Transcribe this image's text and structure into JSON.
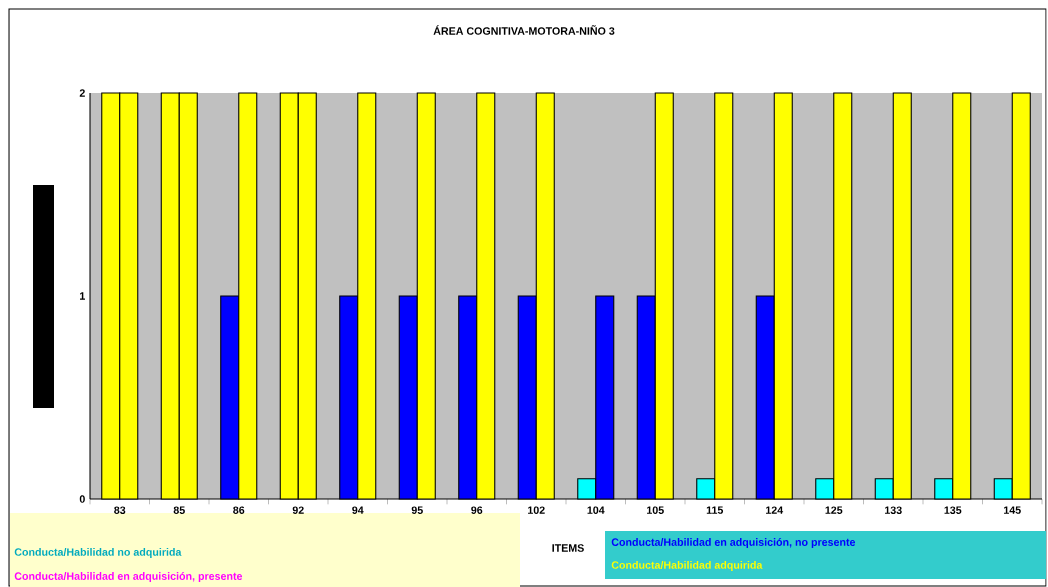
{
  "chart_data": {
    "type": "bar",
    "title": "ÁREA COGNITIVA-MOTORA-NIÑO 3",
    "xlabel": "ITEMS",
    "categories": [
      "83",
      "85",
      "86",
      "92",
      "94",
      "95",
      "96",
      "102",
      "104",
      "105",
      "115",
      "124",
      "125",
      "133",
      "135",
      "145"
    ],
    "series": [
      {
        "colors": [
          "#ffff00",
          "#ffff00",
          "#0000ff",
          "#ffff00",
          "#0000ff",
          "#0000ff",
          "#0000ff",
          "#0000ff",
          "#00ffff",
          "#0000ff",
          "#00ffff",
          "#0000ff",
          "#00ffff",
          "#00ffff",
          "#00ffff",
          "#00ffff"
        ],
        "values": [
          2,
          2,
          1,
          2,
          1,
          1,
          1,
          1,
          0.1,
          1,
          0.1,
          1,
          0.1,
          0.1,
          0.1,
          0.1
        ]
      },
      {
        "colors": [
          "#ffff00",
          "#ffff00",
          "#ffff00",
          "#ffff00",
          "#ffff00",
          "#ffff00",
          "#ffff00",
          "#ffff00",
          "#0000ff",
          "#ffff00",
          "#ffff00",
          "#ffff00",
          "#ffff00",
          "#ffff00",
          "#ffff00",
          "#ffff00"
        ],
        "values": [
          2,
          2,
          2,
          2,
          2,
          2,
          2,
          2,
          1,
          2,
          2,
          2,
          2,
          2,
          2,
          2
        ]
      }
    ],
    "ylim": [
      0,
      2
    ],
    "yticks": [
      0,
      1,
      2
    ],
    "grid": false,
    "annotations": [
      "Conducta/Habilidad no adquirida",
      "Conducta/Habilidad en adquisición, presente",
      "Conducta/Habilidad en adquisición, no presente",
      "Conducta/Habilidad adquirida"
    ]
  }
}
